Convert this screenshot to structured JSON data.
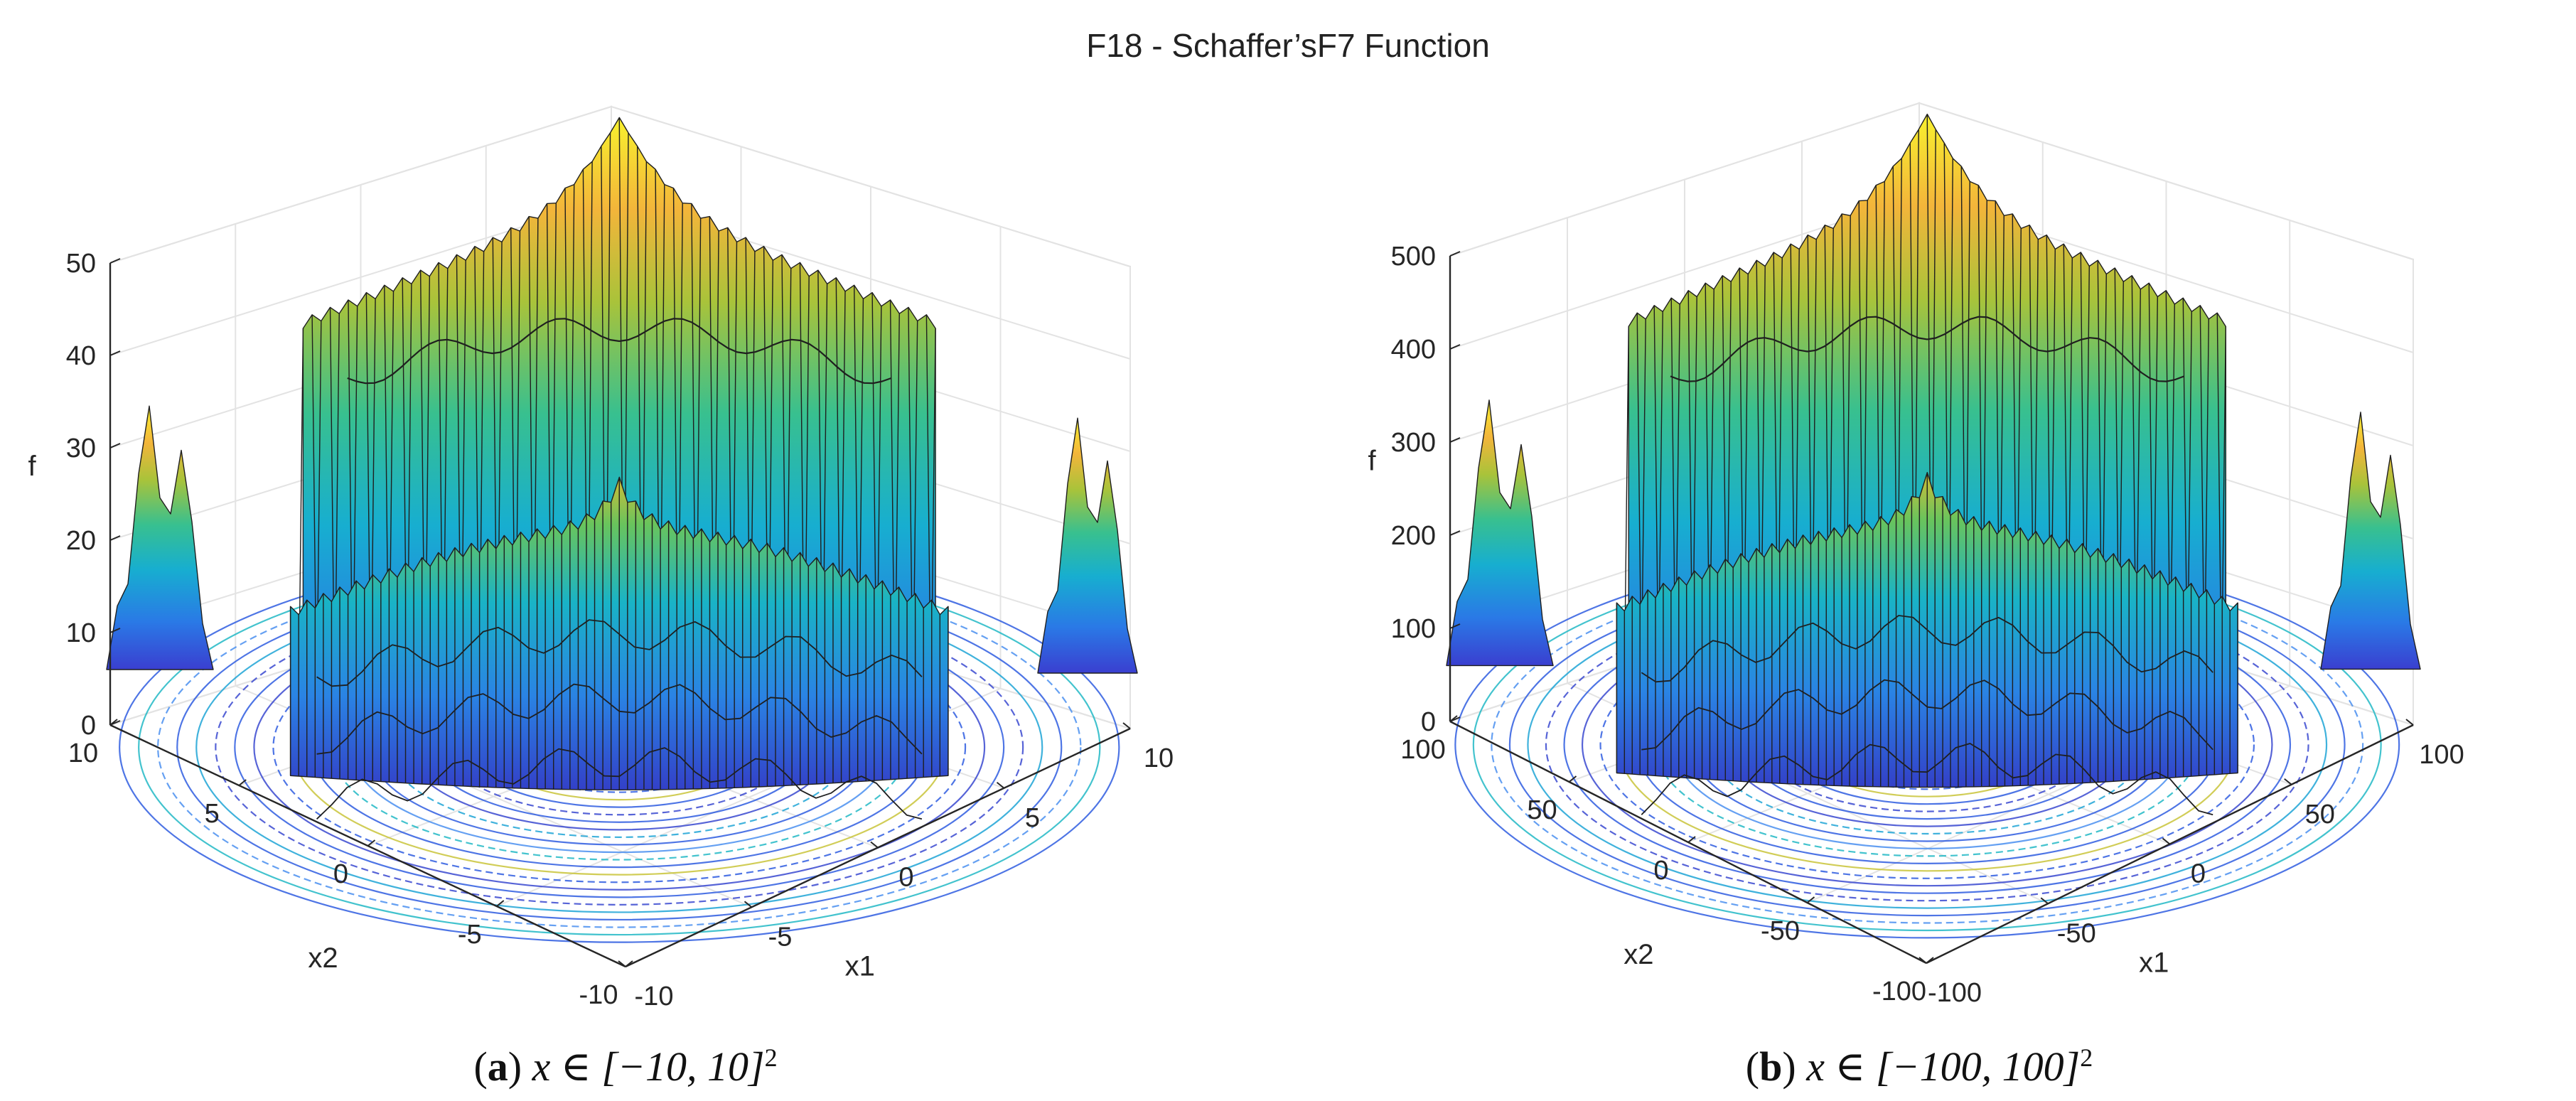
{
  "figure": {
    "title": "F18 - Schaffer’sF7 Function"
  },
  "chart_data": [
    {
      "type": "surface3d",
      "panel": "a",
      "caption": {
        "label": "a",
        "text": "x ∈ [−10, 10]",
        "exponent": "2"
      },
      "x1_range": [
        -10,
        10
      ],
      "x2_range": [
        -10,
        10
      ],
      "zlim": [
        0,
        50
      ],
      "x1_ticks": [
        "-10",
        "-5",
        "0",
        "5",
        "10"
      ],
      "x2_ticks": [
        "-10",
        "-5",
        "0",
        "5",
        "10"
      ],
      "z_ticks": [
        "0",
        "10",
        "20",
        "30",
        "40",
        "50"
      ],
      "xlabel": "x1",
      "ylabel": "x2",
      "zlabel": "f",
      "contour_on_floor": true,
      "grid": true
    },
    {
      "type": "surface3d",
      "panel": "b",
      "caption": {
        "label": "b",
        "text": "x ∈ [−100, 100]",
        "exponent": "2"
      },
      "x1_range": [
        -100,
        100
      ],
      "x2_range": [
        -100,
        100
      ],
      "zlim": [
        0,
        500
      ],
      "x1_ticks": [
        "-100",
        "-50",
        "0",
        "50",
        "100"
      ],
      "x2_ticks": [
        "-100",
        "-50",
        "0",
        "50",
        "100"
      ],
      "z_ticks": [
        "0",
        "100",
        "200",
        "300",
        "400",
        "500"
      ],
      "xlabel": "x1",
      "ylabel": "x2",
      "zlabel": "f",
      "contour_on_floor": true,
      "grid": true
    }
  ]
}
